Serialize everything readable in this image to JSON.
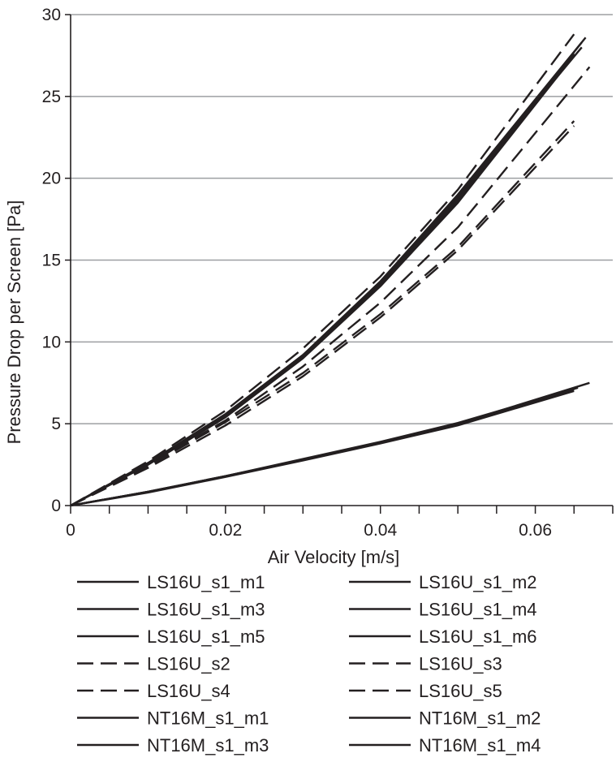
{
  "chart_data": {
    "type": "line",
    "title": "",
    "xlabel": "Air Velocity [m/s]",
    "ylabel": "Pressure Drop per Screen [Pa]",
    "xlim": [
      0,
      0.07
    ],
    "ylim": [
      0,
      30
    ],
    "x_ticks": [
      {
        "value": 0,
        "label": "0"
      },
      {
        "value": 0.02,
        "label": "0.02"
      },
      {
        "value": 0.04,
        "label": "0.04"
      },
      {
        "value": 0.06,
        "label": "0.06"
      }
    ],
    "y_ticks": [
      {
        "value": 0,
        "label": "0"
      },
      {
        "value": 5,
        "label": "5"
      },
      {
        "value": 10,
        "label": "10"
      },
      {
        "value": 15,
        "label": "15"
      },
      {
        "value": 20,
        "label": "20"
      },
      {
        "value": 25,
        "label": "25"
      },
      {
        "value": 30,
        "label": "30"
      }
    ],
    "grid": "horizontal",
    "legend_position": "bottom",
    "line_color": "#231f20",
    "grid_color": "#9d9fa2",
    "series": [
      {
        "name": "LS16U_s1_m1",
        "style": "solid",
        "x": [
          0,
          0.01,
          0.02,
          0.03,
          0.04,
          0.05,
          0.065
        ],
        "y": [
          0,
          2.6,
          5.5,
          9.1,
          13.5,
          18.6,
          27.6
        ]
      },
      {
        "name": "LS16U_s1_m2",
        "style": "solid",
        "x": [
          0,
          0.01,
          0.02,
          0.03,
          0.04,
          0.05,
          0.066
        ],
        "y": [
          0,
          2.6,
          5.6,
          9.2,
          13.6,
          18.8,
          28.3
        ]
      },
      {
        "name": "LS16U_s1_m3",
        "style": "solid",
        "x": [
          0,
          0.01,
          0.02,
          0.03,
          0.04,
          0.05,
          0.065
        ],
        "y": [
          0,
          2.5,
          5.4,
          9.0,
          13.4,
          18.5,
          27.5
        ]
      },
      {
        "name": "LS16U_s1_m4",
        "style": "solid",
        "x": [
          0,
          0.01,
          0.02,
          0.03,
          0.04,
          0.05,
          0.066
        ],
        "y": [
          0,
          2.6,
          5.5,
          9.2,
          13.7,
          18.9,
          28.0
        ]
      },
      {
        "name": "LS16U_s1_m5",
        "style": "solid",
        "x": [
          0,
          0.01,
          0.02,
          0.03,
          0.04,
          0.05,
          0.065
        ],
        "y": [
          0,
          2.5,
          5.4,
          9.1,
          13.5,
          18.7,
          27.7
        ]
      },
      {
        "name": "LS16U_s1_m6",
        "style": "solid",
        "x": [
          0,
          0.01,
          0.02,
          0.03,
          0.04,
          0.05,
          0.0665
        ],
        "y": [
          0,
          2.6,
          5.5,
          9.2,
          13.7,
          19.0,
          28.6
        ]
      },
      {
        "name": "LS16U_s2",
        "style": "dashed",
        "x": [
          0,
          0.01,
          0.02,
          0.03,
          0.04,
          0.05,
          0.067
        ],
        "y": [
          0,
          2.5,
          5.2,
          8.5,
          12.4,
          17.0,
          26.8
        ]
      },
      {
        "name": "LS16U_s3",
        "style": "dashed",
        "x": [
          0,
          0.01,
          0.02,
          0.03,
          0.04,
          0.05,
          0.065
        ],
        "y": [
          0,
          2.4,
          5.1,
          8.1,
          11.7,
          15.8,
          23.5
        ]
      },
      {
        "name": "LS16U_s4",
        "style": "dashed",
        "x": [
          0,
          0.01,
          0.02,
          0.03,
          0.04,
          0.05,
          0.065
        ],
        "y": [
          0,
          2.7,
          5.8,
          9.6,
          14.0,
          19.3,
          28.8
        ]
      },
      {
        "name": "LS16U_s5",
        "style": "dashed",
        "x": [
          0,
          0.01,
          0.02,
          0.03,
          0.04,
          0.05,
          0.065
        ],
        "y": [
          0,
          2.3,
          4.9,
          7.9,
          11.5,
          15.6,
          23.2
        ]
      },
      {
        "name": "NT16M_s1_m1",
        "style": "solid",
        "x": [
          0,
          0.01,
          0.02,
          0.03,
          0.04,
          0.05,
          0.065
        ],
        "y": [
          0,
          0.85,
          1.8,
          2.8,
          3.85,
          4.95,
          7.1
        ]
      },
      {
        "name": "NT16M_s1_m2",
        "style": "solid",
        "x": [
          0,
          0.01,
          0.02,
          0.03,
          0.04,
          0.05,
          0.067
        ],
        "y": [
          0,
          0.85,
          1.8,
          2.8,
          3.85,
          5.0,
          7.5
        ]
      },
      {
        "name": "NT16M_s1_m3",
        "style": "solid",
        "x": [
          0,
          0.01,
          0.02,
          0.03,
          0.04,
          0.05,
          0.065
        ],
        "y": [
          0,
          0.8,
          1.75,
          2.75,
          3.8,
          4.9,
          7.0
        ]
      },
      {
        "name": "NT16M_s1_m4",
        "style": "solid",
        "x": [
          0,
          0.01,
          0.02,
          0.03,
          0.04,
          0.05,
          0.0655
        ],
        "y": [
          0,
          0.85,
          1.8,
          2.85,
          3.9,
          5.05,
          7.2
        ]
      }
    ]
  }
}
